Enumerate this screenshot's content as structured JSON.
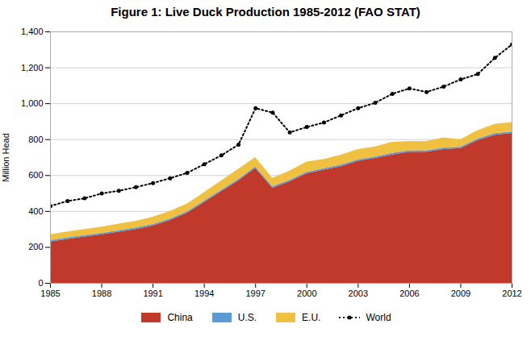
{
  "chart_data": {
    "type": "area",
    "title": "Figure 1: Live Duck Production 1985-2012 (FAO STAT)",
    "ylabel": "Million Head",
    "x": [
      1985,
      1986,
      1987,
      1988,
      1989,
      1990,
      1991,
      1992,
      1993,
      1994,
      1995,
      1996,
      1997,
      1998,
      1999,
      2000,
      2001,
      2002,
      2003,
      2004,
      2005,
      2006,
      2007,
      2008,
      2009,
      2010,
      2011,
      2012
    ],
    "series": [
      {
        "name": "China",
        "type": "area",
        "color": "#c0392b",
        "values": [
          230,
          245,
          258,
          270,
          285,
          300,
          320,
          350,
          390,
          450,
          510,
          570,
          640,
          530,
          565,
          610,
          630,
          650,
          680,
          695,
          715,
          730,
          730,
          745,
          750,
          795,
          825,
          835
        ]
      },
      {
        "name": "U.S.",
        "type": "area",
        "color": "#5b9bd5",
        "values": [
          8,
          8,
          8,
          8,
          8,
          8,
          8,
          8,
          8,
          8,
          8,
          8,
          8,
          8,
          8,
          8,
          8,
          8,
          8,
          8,
          8,
          8,
          8,
          8,
          8,
          8,
          8,
          8
        ]
      },
      {
        "name": "E.U.",
        "type": "area",
        "color": "#f0c040",
        "values": [
          32,
          33,
          34,
          35,
          37,
          38,
          40,
          42,
          43,
          47,
          52,
          57,
          52,
          47,
          52,
          57,
          52,
          55,
          57,
          57,
          62,
          52,
          52,
          57,
          42,
          47,
          52,
          52
        ]
      },
      {
        "name": "World",
        "type": "line",
        "color": "#000000",
        "line_style": "dotted",
        "marker": "circle",
        "values": [
          430,
          458,
          473,
          500,
          515,
          535,
          558,
          585,
          615,
          663,
          712,
          772,
          975,
          950,
          840,
          870,
          895,
          935,
          975,
          1005,
          1055,
          1085,
          1065,
          1095,
          1135,
          1165,
          1255,
          1330
        ]
      }
    ],
    "stacked": true,
    "xlim": [
      1985,
      2012
    ],
    "xticks": [
      1985,
      1988,
      1991,
      1994,
      1997,
      2000,
      2003,
      2006,
      2009,
      2012
    ],
    "ylim": [
      0,
      1400
    ],
    "yticks": [
      0,
      200,
      400,
      600,
      800,
      {
        "value": 1000,
        "label": "1,000"
      },
      {
        "value": 1200,
        "label": "1,200"
      },
      {
        "value": 1400,
        "label": "1,400"
      }
    ],
    "grid": true,
    "legend": "bottom"
  }
}
